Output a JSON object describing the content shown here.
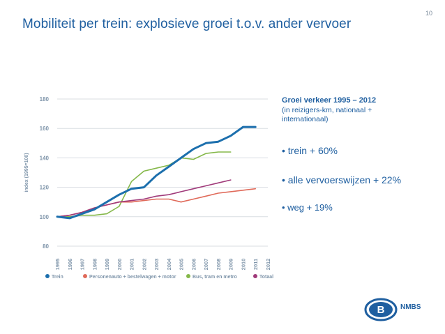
{
  "slide": {
    "page_number": "10",
    "title": "Mobiliteit per trein: explosieve groei t.o.v. ander vervoer"
  },
  "info": {
    "heading": "Groei verkeer 1995 – 2012",
    "subheading": "(in reizigers-km, nationaal + internationaal)",
    "bullets": [
      "• trein + 60%",
      "• alle vervoerswijzen + 22%",
      "• weg + 19%"
    ]
  },
  "logo": {
    "text": "NMBS",
    "letter": "B"
  },
  "colors": {
    "title": "#1f5fa0",
    "trein": "#1c6fad",
    "personenauto": "#e06a5a",
    "bus": "#85b84a",
    "totaal": "#a03a7a",
    "grid": "#d9dde2",
    "axis_text": "#7f95aa"
  },
  "chart_data": {
    "type": "line",
    "ylabel": "index (1995=100)",
    "xlabel": "",
    "ylim": [
      80,
      180
    ],
    "yticks": [
      "180",
      "160",
      "140",
      "120",
      "100",
      "80"
    ],
    "categories": [
      "1995",
      "1996",
      "1997",
      "1998",
      "1999",
      "2000",
      "2001",
      "2002",
      "2003",
      "2004",
      "2005",
      "2006",
      "2007",
      "2008",
      "2009",
      "2010",
      "2011",
      "2012"
    ],
    "grid": true,
    "legend_position": "bottom",
    "series": [
      {
        "name": "Trein",
        "color": "#1c6fad",
        "values": [
          100,
          99,
          102,
          105,
          110,
          115,
          119,
          120,
          128,
          134,
          140,
          146,
          150,
          151,
          155,
          161,
          161,
          null
        ]
      },
      {
        "name": "Personenauto + bestelwagen + motor",
        "color": "#e06a5a",
        "values": [
          100,
          101,
          103,
          106,
          108,
          110,
          110,
          111,
          112,
          112,
          110,
          112,
          114,
          116,
          117,
          118,
          119,
          null
        ]
      },
      {
        "name": "Bus, tram en metro",
        "color": "#85b84a",
        "values": [
          100,
          100,
          101,
          101,
          102,
          107,
          124,
          131,
          133,
          135,
          140,
          139,
          143,
          144,
          144,
          null,
          null,
          null
        ]
      },
      {
        "name": "Totaal",
        "color": "#a03a7a",
        "values": [
          100,
          101,
          103,
          106,
          108,
          110,
          111,
          112,
          114,
          115,
          117,
          119,
          121,
          123,
          125,
          null,
          null,
          null
        ]
      }
    ]
  }
}
